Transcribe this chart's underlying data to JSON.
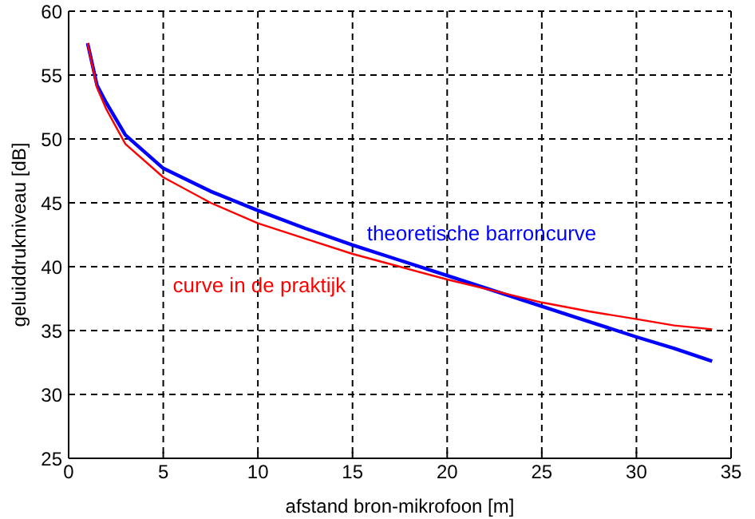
{
  "chart_data": {
    "type": "line",
    "xlabel": "afstand bron-mikrofoon  [m]",
    "ylabel": "geluiddrukniveau  [dB]",
    "x": [
      1,
      1.5,
      2,
      3,
      5,
      7.5,
      10,
      12.5,
      15,
      17.5,
      20,
      22.5,
      25,
      27.5,
      30,
      32,
      34
    ],
    "series": [
      {
        "name": "theoretische barroncurve",
        "color": "#0000ff",
        "values": [
          57.5,
          54.2,
          52.8,
          50.3,
          47.7,
          45.9,
          44.4,
          43.0,
          41.7,
          40.5,
          39.3,
          38.1,
          36.9,
          35.7,
          34.5,
          33.6,
          32.6
        ]
      },
      {
        "name": "curve in de praktijk",
        "color": "#ff0000",
        "values": [
          57.5,
          54.0,
          52.3,
          49.6,
          47.0,
          45.0,
          43.4,
          42.2,
          41.0,
          40.0,
          39.0,
          38.1,
          37.2,
          36.5,
          35.9,
          35.4,
          35.1
        ]
      }
    ],
    "xlim": [
      0,
      35
    ],
    "xticks": [
      0,
      5,
      10,
      15,
      20,
      25,
      30,
      35
    ],
    "ylim": [
      25,
      60
    ],
    "yticks": [
      25,
      30,
      35,
      40,
      45,
      50,
      55,
      60
    ],
    "grid": true,
    "line_style": "solid",
    "marker": "none"
  }
}
